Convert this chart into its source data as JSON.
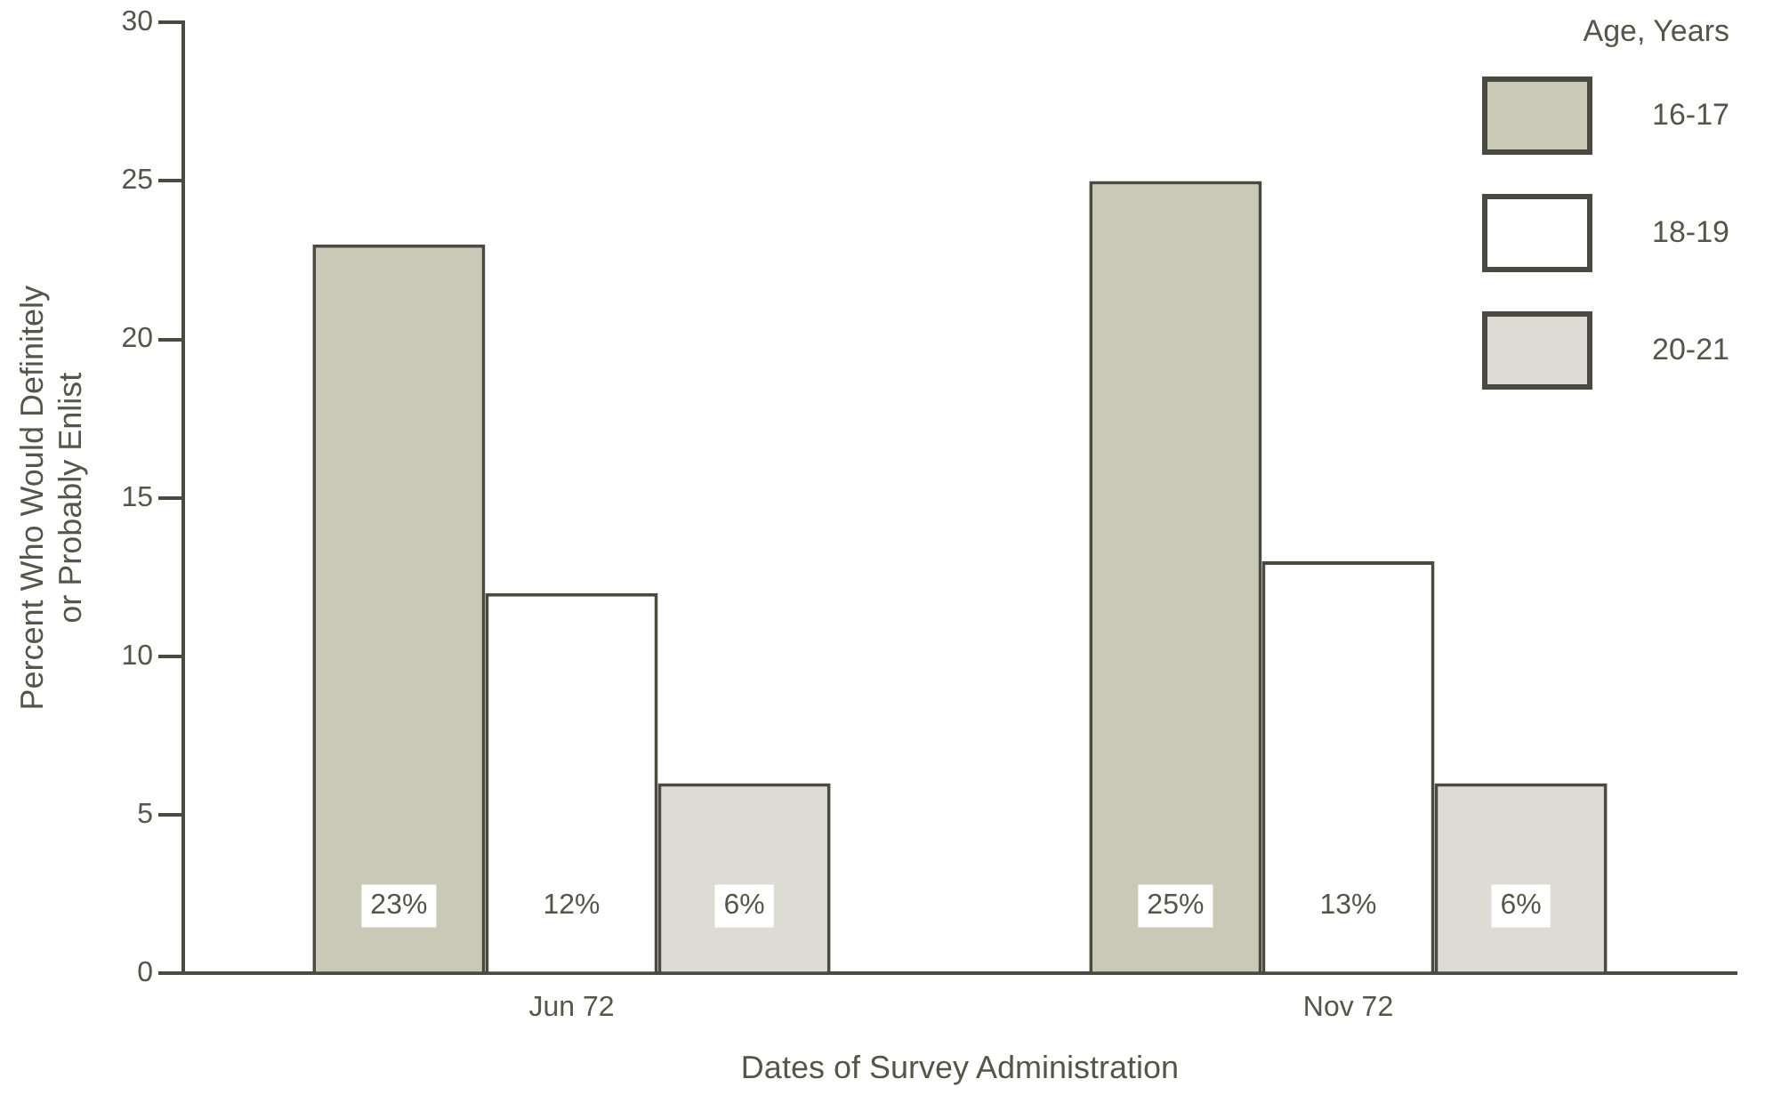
{
  "chart_data": {
    "type": "bar",
    "xlabel": "Dates of Survey Administration",
    "ylabel": "Percent Who Would Definitely\nor Probably Enlist",
    "legend_title": "Age, Years",
    "categories": [
      "Jun 72",
      "Nov 72"
    ],
    "series": [
      {
        "name": "16-17",
        "color": "#c9c9b8",
        "values": [
          23,
          25
        ],
        "value_labels": [
          "23%",
          "25%"
        ]
      },
      {
        "name": "18-19",
        "color": "#ffffff",
        "values": [
          12,
          13
        ],
        "value_labels": [
          "12%",
          "13%"
        ]
      },
      {
        "name": "20-21",
        "color": "#dcdcd4",
        "values": [
          6,
          6
        ],
        "value_labels": [
          "6%",
          "6%"
        ]
      }
    ],
    "ylim": [
      0,
      30
    ],
    "yticks": [
      0,
      5,
      10,
      15,
      20,
      25,
      30
    ],
    "grid": false,
    "legend": "top right"
  }
}
